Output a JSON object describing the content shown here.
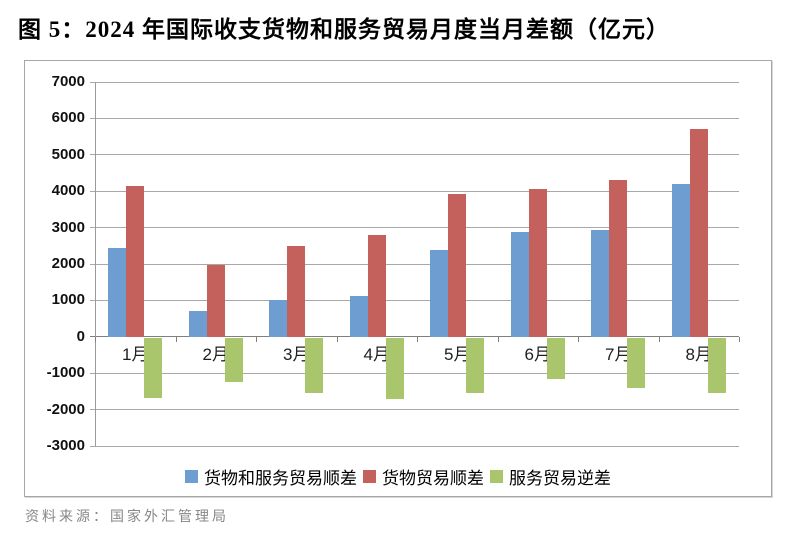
{
  "page": {
    "title": "图 5：2024 年国际收支货物和服务贸易月度当月差额（亿元）",
    "source": "资料来源：国家外汇管理局"
  },
  "colors": {
    "series_blue": "#6d9dd1",
    "series_red": "#c5615c",
    "series_green": "#a9c66c",
    "gridline": "#a8a8a8",
    "zero_line": "#7f7f7f",
    "frame_border": "#a6a6a6",
    "axis_text": "#111111",
    "source_text": "#878787"
  },
  "chart_data": {
    "type": "bar",
    "title": "图 5：2024 年国际收支货物和服务贸易月度当月差额（亿元）",
    "categories": [
      "1月",
      "2月",
      "3月",
      "4月",
      "5月",
      "6月",
      "7月",
      "8月"
    ],
    "series": [
      {
        "name": "货物和服务贸易顺差",
        "color": "#6d9dd1",
        "values": [
          2450,
          720,
          1010,
          1130,
          2390,
          2890,
          2930,
          4200
        ]
      },
      {
        "name": "货物贸易顺差",
        "color": "#c5615c",
        "values": [
          4130,
          1960,
          2500,
          2800,
          3920,
          4050,
          4320,
          5700
        ]
      },
      {
        "name": "服务贸易逆差",
        "color": "#a9c66c",
        "values": [
          -1660,
          -1220,
          -1530,
          -1680,
          -1520,
          -1120,
          -1380,
          -1520
        ]
      }
    ],
    "xlabel": "",
    "ylabel": "",
    "ylim": [
      -3000,
      7000
    ],
    "ytick_step": 1000,
    "yticks": [
      7000,
      6000,
      5000,
      4000,
      3000,
      2000,
      1000,
      0,
      -1000,
      -2000,
      -3000
    ],
    "grid": true,
    "legend_position": "bottom"
  }
}
